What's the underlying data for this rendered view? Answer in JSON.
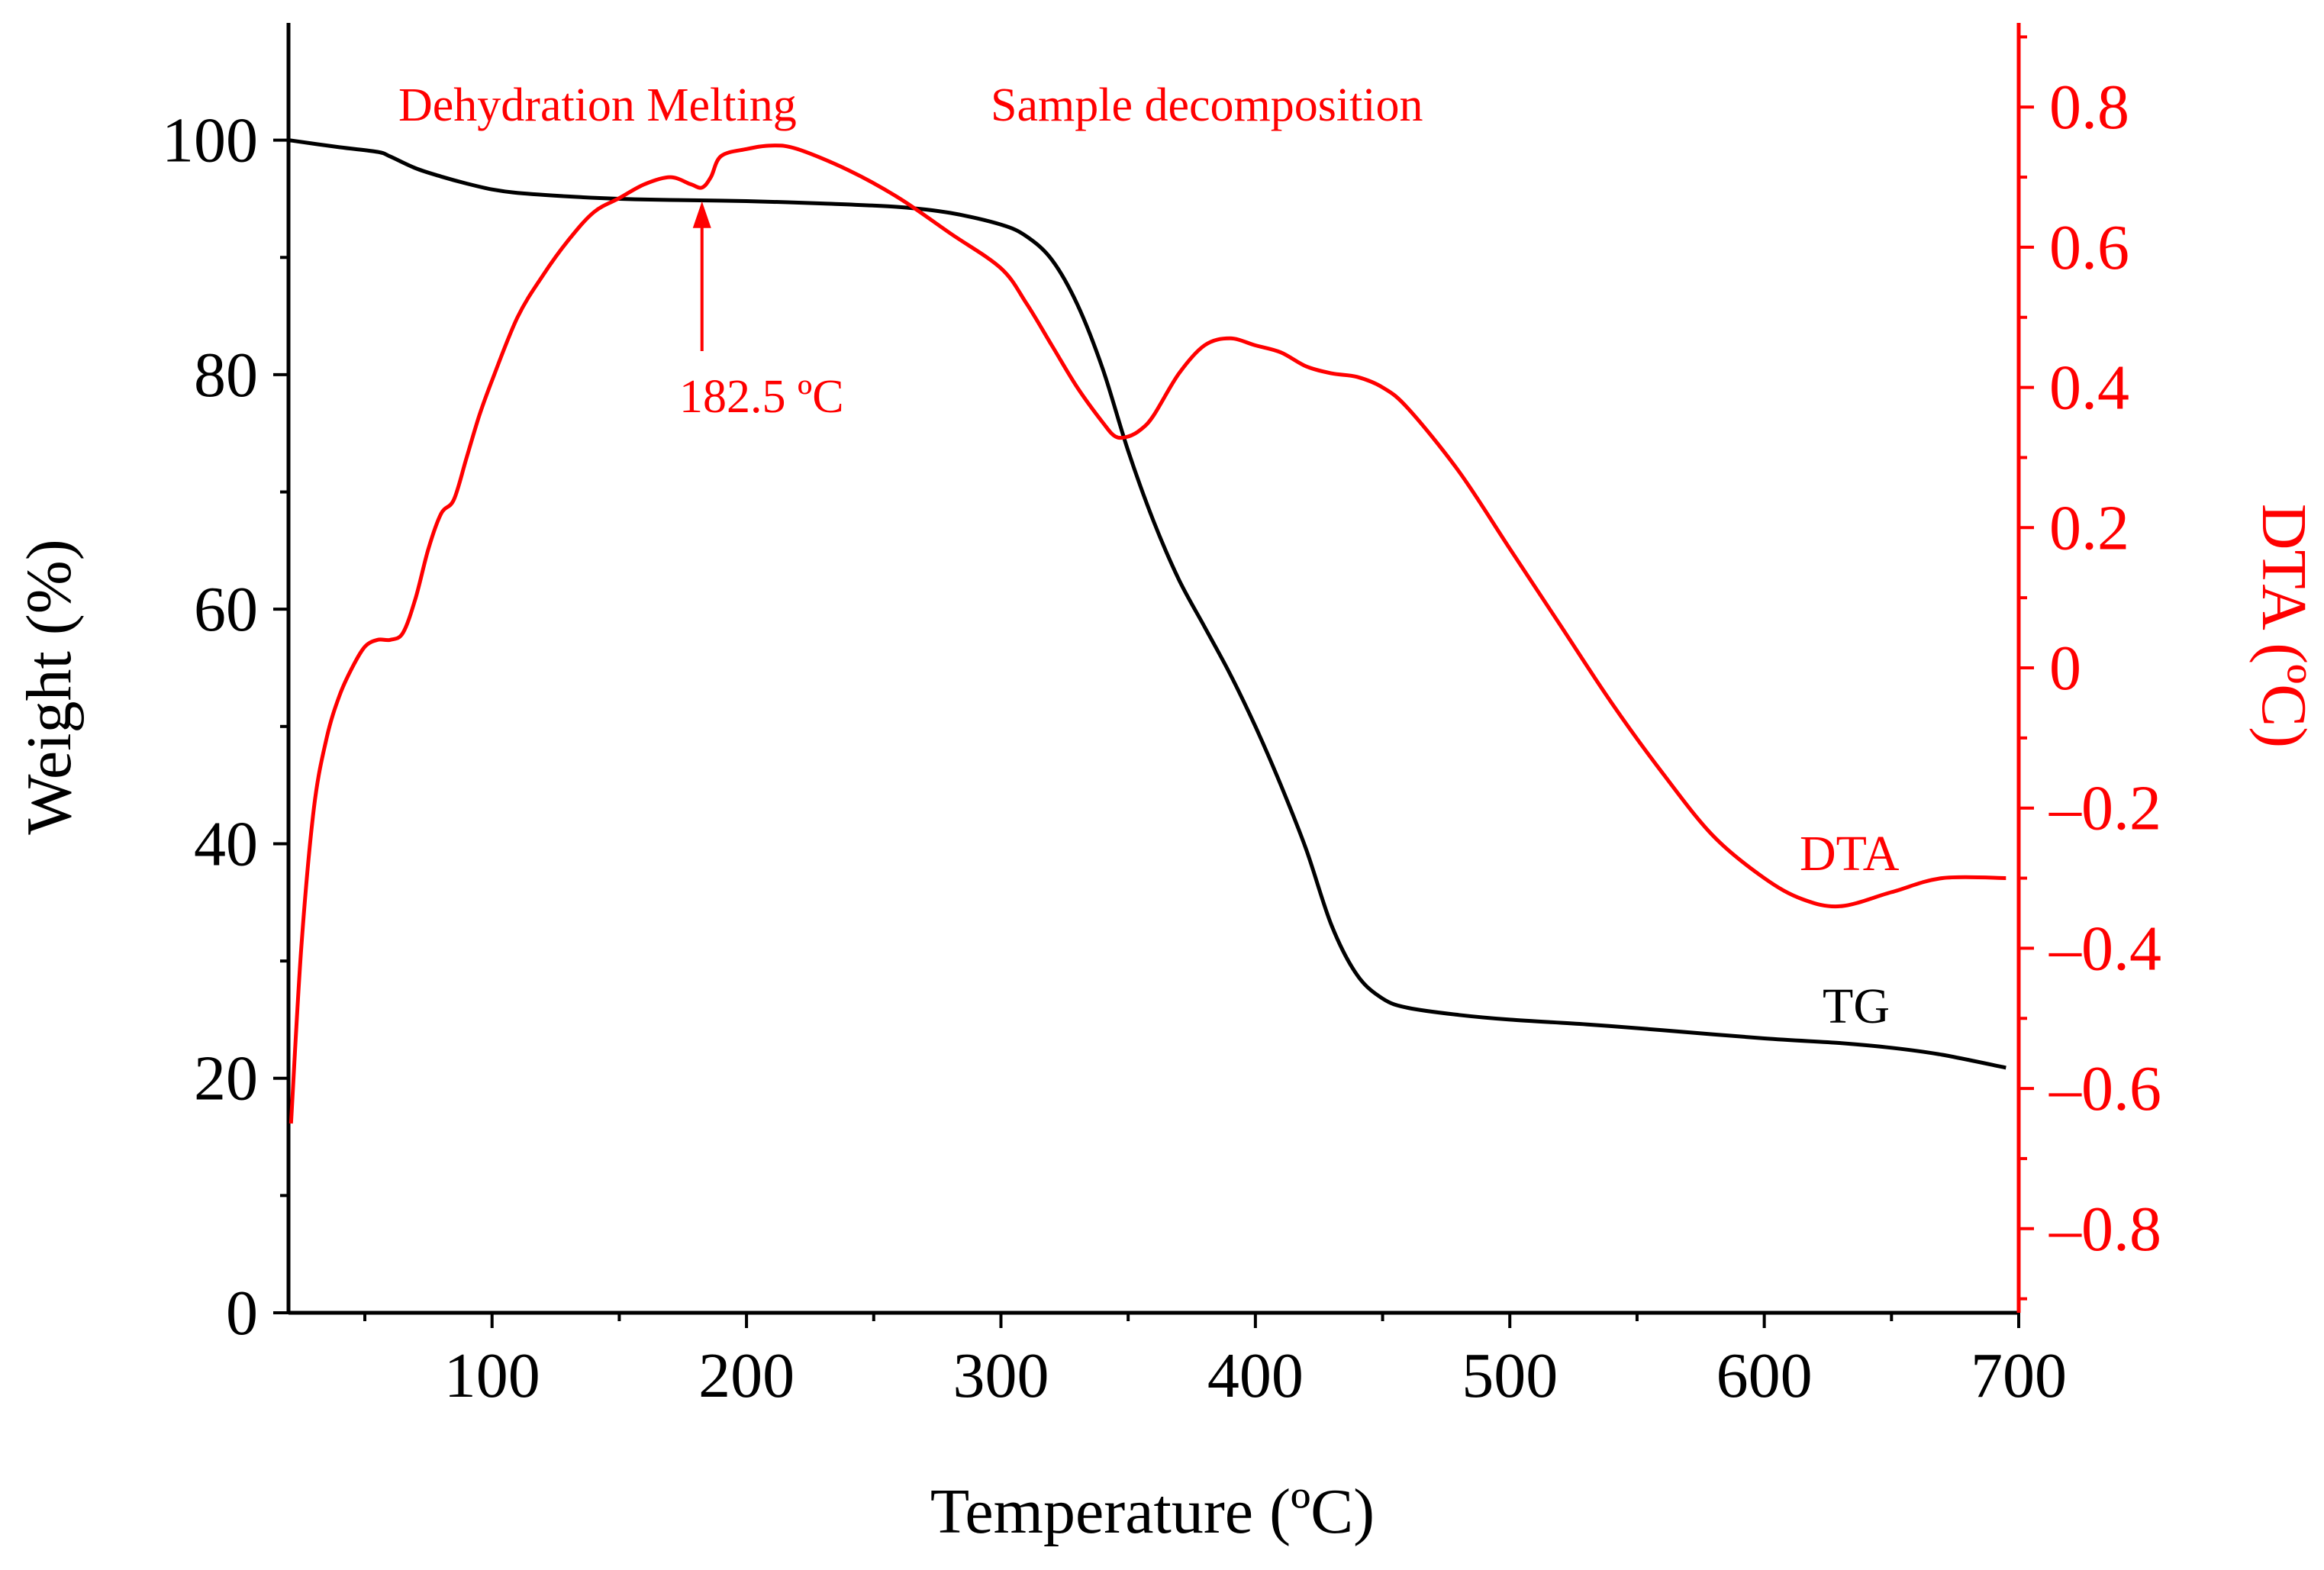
{
  "chart_data": {
    "type": "line",
    "xlabel": "Temperature (ºC)",
    "ylabel": "Weight (%)",
    "y2label": "DTA (ºC)",
    "xlim": [
      20,
      700
    ],
    "ylim": [
      0,
      110
    ],
    "y2lim": [
      -0.92,
      0.92
    ],
    "x_ticks": [
      100,
      200,
      300,
      400,
      500,
      600,
      700
    ],
    "x_tick_labels": [
      "100",
      "200",
      "300",
      "400",
      "500",
      "600",
      "700"
    ],
    "y_ticks": [
      0,
      20,
      40,
      60,
      80,
      100
    ],
    "y_tick_labels": [
      "0",
      "20",
      "40",
      "60",
      "80",
      "100"
    ],
    "y2_ticks": [
      -0.8,
      -0.6,
      -0.4,
      -0.2,
      0,
      0.2,
      0.4,
      0.6,
      0.8
    ],
    "y2_tick_labels": [
      "–0.8",
      "–0.6",
      "–0.4",
      "–0.2",
      "0",
      "0.2",
      "0.4",
      "0.6",
      "0.8"
    ],
    "colors": {
      "axis": "#000000",
      "tg": "#000000",
      "dta": "#ff0000"
    },
    "series": [
      {
        "name": "TG",
        "axis": "left",
        "x": [
          20,
          40,
          55,
          60,
          70,
          80,
          90,
          100,
          110,
          130,
          150,
          170,
          200,
          230,
          260,
          280,
          300,
          310,
          320,
          330,
          340,
          350,
          360,
          370,
          380,
          390,
          400,
          410,
          420,
          430,
          440,
          450,
          460,
          480,
          500,
          530,
          560,
          600,
          630,
          650,
          670,
          695
        ],
        "values": [
          100.0,
          99.4,
          99.0,
          98.6,
          97.6,
          96.9,
          96.3,
          95.8,
          95.5,
          95.2,
          95.0,
          94.9,
          94.8,
          94.6,
          94.3,
          93.8,
          92.8,
          91.8,
          89.8,
          86.0,
          80.5,
          73.5,
          67.5,
          62.5,
          58.5,
          54.5,
          50.0,
          45.0,
          39.5,
          33.0,
          28.8,
          26.8,
          26.0,
          25.4,
          25.0,
          24.6,
          24.1,
          23.4,
          23.0,
          22.6,
          22.0,
          20.9
        ]
      },
      {
        "name": "DTA",
        "axis": "right",
        "x": [
          21,
          25,
          30,
          35,
          40,
          45,
          50,
          55,
          60,
          65,
          70,
          75,
          80,
          85,
          90,
          95,
          100,
          110,
          120,
          130,
          140,
          150,
          160,
          170,
          178,
          182.5,
          186,
          190,
          200,
          210,
          220,
          240,
          260,
          280,
          300,
          310,
          320,
          330,
          340,
          345,
          350,
          355,
          360,
          370,
          380,
          390,
          400,
          410,
          420,
          430,
          440,
          450,
          460,
          480,
          500,
          520,
          540,
          560,
          580,
          600,
          615,
          630,
          650,
          670,
          695
        ],
        "values": [
          -0.65,
          -0.4,
          -0.2,
          -0.1,
          -0.04,
          0.0,
          0.03,
          0.04,
          0.04,
          0.05,
          0.1,
          0.17,
          0.22,
          0.24,
          0.3,
          0.36,
          0.41,
          0.5,
          0.56,
          0.61,
          0.65,
          0.67,
          0.69,
          0.7,
          0.69,
          0.685,
          0.7,
          0.73,
          0.74,
          0.745,
          0.74,
          0.71,
          0.67,
          0.62,
          0.57,
          0.52,
          0.46,
          0.4,
          0.35,
          0.33,
          0.33,
          0.34,
          0.36,
          0.42,
          0.46,
          0.47,
          0.46,
          0.45,
          0.43,
          0.42,
          0.415,
          0.4,
          0.37,
          0.28,
          0.17,
          0.06,
          -0.05,
          -0.15,
          -0.24,
          -0.3,
          -0.33,
          -0.34,
          -0.32,
          -0.3,
          -0.3
        ]
      }
    ],
    "annotations": [
      {
        "id": "dehydration",
        "text": "Dehydration Melting",
        "color": "#ff0000"
      },
      {
        "id": "decomposition",
        "text": "Sample decomposition",
        "color": "#ff0000"
      },
      {
        "id": "peak",
        "text": "182.5 ºC",
        "color": "#ff0000",
        "x": 182.5
      },
      {
        "id": "dta_label",
        "text": "DTA",
        "color": "#ff0000"
      },
      {
        "id": "tg_label",
        "text": "TG",
        "color": "#000000"
      }
    ]
  }
}
